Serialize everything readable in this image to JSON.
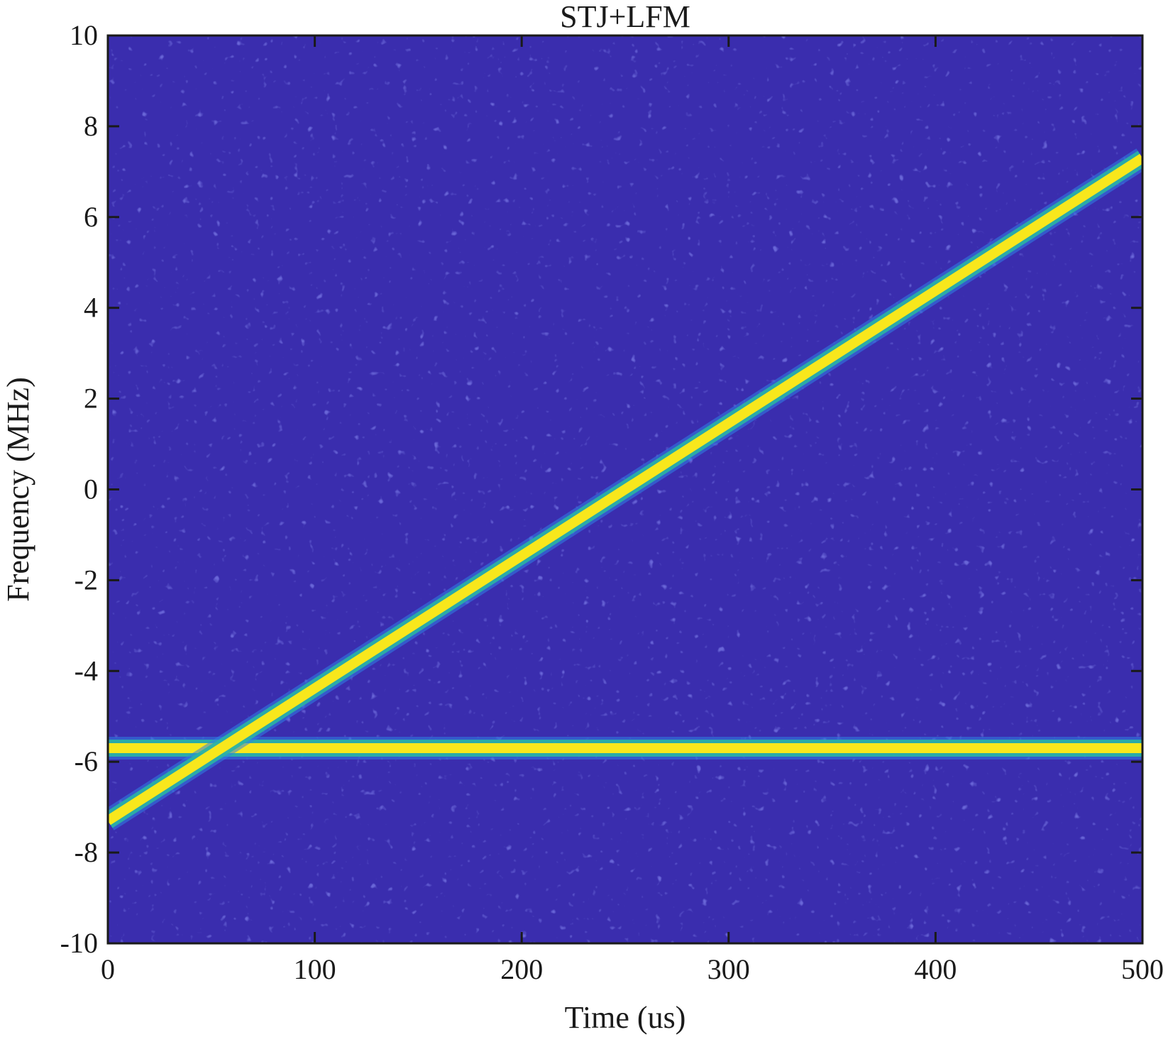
{
  "chart_data": {
    "type": "heatmap",
    "title": "STJ+LFM",
    "xlabel": "Time (us)",
    "ylabel": "Frequency (MHz)",
    "xlim": [
      0,
      500
    ],
    "ylim": [
      -10,
      10
    ],
    "x_ticks": [
      0,
      100,
      200,
      300,
      400,
      500
    ],
    "y_ticks": [
      -10,
      -8,
      -6,
      -4,
      -2,
      0,
      2,
      4,
      6,
      8,
      10
    ],
    "grid": false,
    "legend": "none",
    "colormap": "parula",
    "colors": {
      "background": "#3A2DAE",
      "ridge_peak": "#F8E71C",
      "ridge_mid": "#29B4A4",
      "ridge_edge": "#2F7FE6"
    },
    "components": [
      {
        "kind": "STJ",
        "frequency": -5.7,
        "x_start": 0,
        "x_end": 500
      },
      {
        "kind": "LFM",
        "x": [
          0,
          500
        ],
        "y": [
          -7.3,
          7.3
        ]
      }
    ]
  }
}
